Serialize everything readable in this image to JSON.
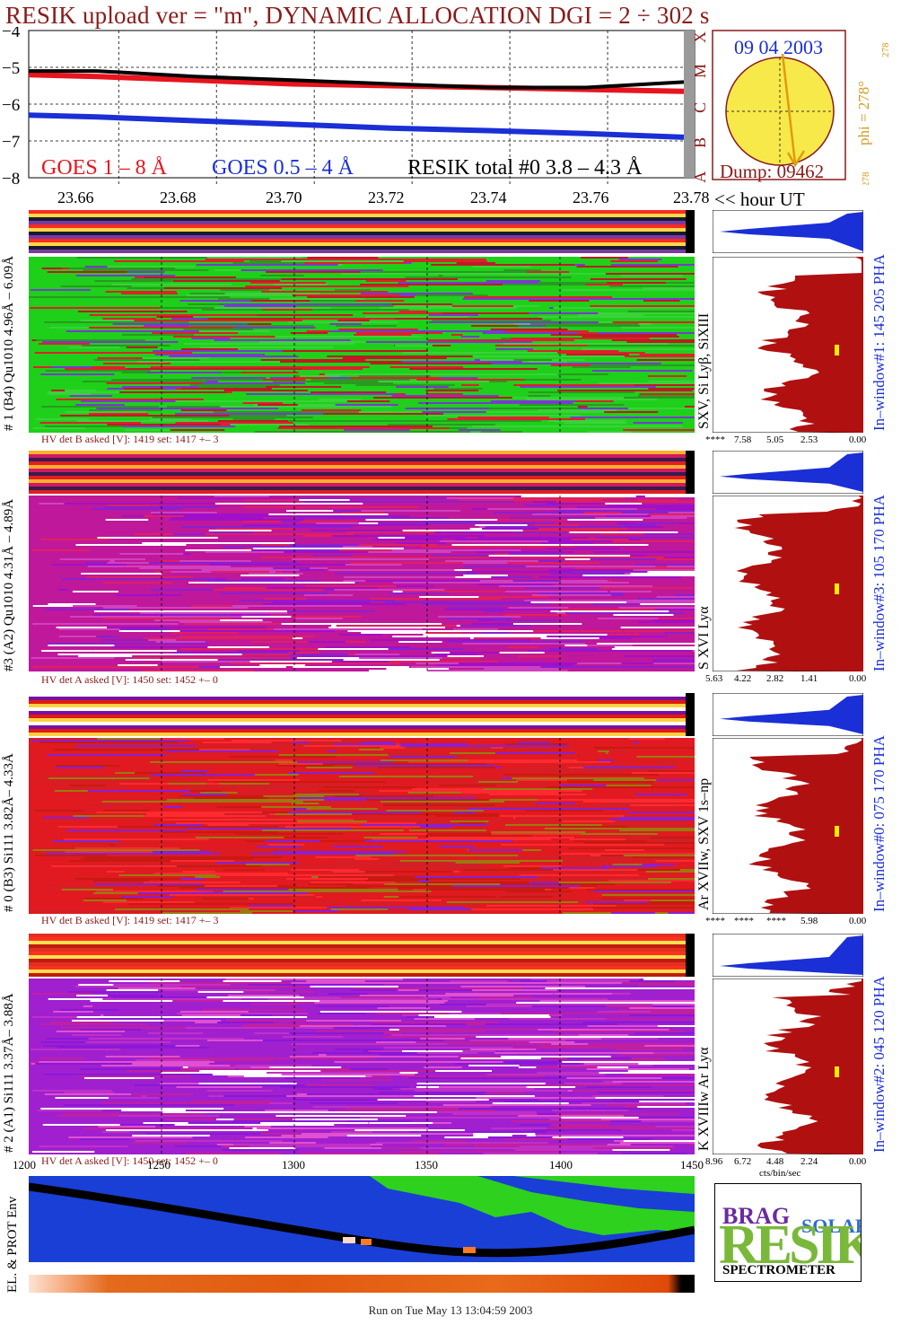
{
  "header": {
    "title": "RESIK upload ver = \"m\", DYNAMIC ALLOCATION  DGI =   2 ÷ 302 s"
  },
  "goes_panel": {
    "legend": [
      "GOES 1 – 8 Å",
      "GOES 0.5 – 4 Å",
      "RESIK total #0  3.8 – 4.3 Å"
    ],
    "legend_colors": [
      "#e8141e",
      "#1a2fd6",
      "#000000"
    ],
    "class_letters": [
      "X",
      "M",
      "C",
      "B",
      "A"
    ],
    "y_ticks": [
      "−4",
      "−5",
      "−6",
      "−7",
      "−8"
    ]
  },
  "sun_panel": {
    "date": "09 04 2003",
    "dump": "Dump: 09462",
    "phi_label": "phi = 278°",
    "phi_small_top": "278",
    "phi_small_bottom": "278"
  },
  "time_axis": {
    "ticks": [
      "23.66",
      "23.68",
      "23.70",
      "23.72",
      "23.74",
      "23.76",
      "23.78"
    ],
    "unit_label": "<< hour UT"
  },
  "channels": [
    {
      "left_label": "# 1 (B4) Qu1010 4.96Å – 6.09Å",
      "right_line_label": "SXV, Si Lyβ, SiXIII",
      "window_label": "In–window#1:  145 205 PHA",
      "hv_text": "HV det B asked [V]:  1419 set:  1417 +–    3",
      "spec_ticks": [
        "****",
        "7.58",
        "5.05",
        "2.53",
        "0.00"
      ]
    },
    {
      "left_label": "#3 (A2) Qu1010  4.31Å – 4.89Å",
      "right_line_label": "S XVI Lyα",
      "window_label": "In–window#3:  105 170 PHA",
      "hv_text": "HV det A asked [V]:  1450 set:  1452 +–    0",
      "spec_ticks": [
        "5.63",
        "4.22",
        "2.82",
        "1.41",
        "0.00"
      ]
    },
    {
      "left_label": "# 0 (B3) Si111  3.82Å– 4.33Å",
      "right_line_label": "Ar XVIIw,  SXV 1s–np",
      "window_label": "In–window#0:  075 170 PHA",
      "hv_text": "HV det B asked [V]:  1419 set:  1417 +–    3",
      "spec_ticks": [
        "****",
        "****",
        "****",
        "5.98",
        "0.00"
      ]
    },
    {
      "left_label": "# 2 (A1) Si111  3.37Å– 3.88Å",
      "right_line_label": "K XVIIIw  Ar Lyα",
      "window_label": "In–window#2:  045 120 PHA",
      "hv_text": "HV det A asked [V]:  1450 set:  1452 +–    0",
      "spec_ticks": [
        "8.96",
        "6.72",
        "4.48",
        "2.24",
        "0.00"
      ]
    }
  ],
  "spec_unit": "cts/bin/sec",
  "orbit_axis": {
    "ticks": [
      "1200",
      "1250",
      "1300",
      "1350",
      "1400",
      "1450"
    ]
  },
  "env_label": "EL. & PROT Env",
  "logo": {
    "letters": "RESIK",
    "words": [
      "BRAG",
      "SOLAR"
    ],
    "caption": "SPECTROMETER"
  },
  "footer": {
    "text": "Run on Tue May 13 13:04:59 2003"
  },
  "chart_data": {
    "type": "line",
    "title": "RESIK upload ver = \"m\", DYNAMIC ALLOCATION  DGI =   2 ÷ 302 s",
    "xlabel": "hour UT",
    "ylabel": "",
    "x": [
      23.646,
      23.66,
      23.68,
      23.7,
      23.72,
      23.74,
      23.76,
      23.78
    ],
    "ylim": [
      -8,
      -4
    ],
    "series": [
      {
        "name": "GOES 1 – 8 Å",
        "values": [
          -5.2,
          -5.25,
          -5.35,
          -5.45,
          -5.5,
          -5.55,
          -5.6,
          -5.65
        ]
      },
      {
        "name": "GOES 0.5 – 4 Å",
        "values": [
          -6.3,
          -6.35,
          -6.45,
          -6.55,
          -6.65,
          -6.72,
          -6.8,
          -6.9
        ]
      },
      {
        "name": "RESIK total #0  3.8 – 4.3 Å",
        "values": [
          -5.1,
          -5.1,
          -5.25,
          -5.35,
          -5.45,
          -5.55,
          -5.55,
          -5.4
        ]
      }
    ],
    "grid": true
  }
}
